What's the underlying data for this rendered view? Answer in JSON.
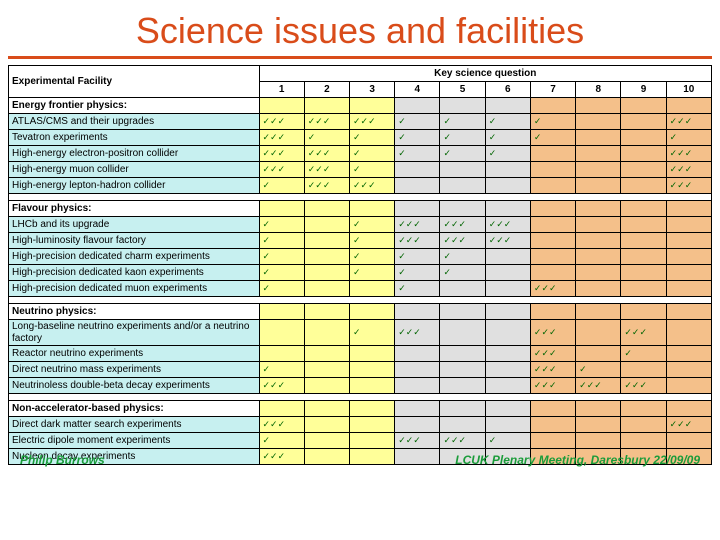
{
  "title": "Science issues and facilities",
  "colors": {
    "accent": "#d94c1a",
    "tick": "#006400",
    "cyan": "#c7f0f0",
    "yellow": "#ffff99",
    "grey": "#e0e0e0",
    "orange": "#f4c08a",
    "footer": "#1a9c3a"
  },
  "header": {
    "facility": "Experimental Facility",
    "key": "Key science question",
    "nums": [
      "1",
      "2",
      "3",
      "4",
      "5",
      "6",
      "7",
      "8",
      "9",
      "10"
    ]
  },
  "sections": [
    {
      "title": "Energy frontier physics:",
      "rows": [
        {
          "label": "ATLAS/CMS and their upgrades",
          "cells": [
            "✓✓✓",
            "✓✓✓",
            "✓✓✓",
            "✓",
            "✓",
            "✓",
            "✓",
            "",
            "",
            "✓✓✓"
          ]
        },
        {
          "label": "Tevatron experiments",
          "cells": [
            "✓✓✓",
            "✓",
            "✓",
            "✓",
            "✓",
            "✓",
            "✓",
            "",
            "",
            "✓"
          ]
        },
        {
          "label": "High-energy electron-positron collider",
          "cells": [
            "✓✓✓",
            "✓✓✓",
            "✓",
            "✓",
            "✓",
            "✓",
            "",
            "",
            "",
            "✓✓✓"
          ]
        },
        {
          "label": "High-energy muon collider",
          "cells": [
            "✓✓✓",
            "✓✓✓",
            "✓",
            "",
            "",
            "",
            "",
            "",
            "",
            "✓✓✓"
          ]
        },
        {
          "label": "High-energy lepton-hadron collider",
          "cells": [
            "✓",
            "✓✓✓",
            "✓✓✓",
            "",
            "",
            "",
            "",
            "",
            "",
            "✓✓✓"
          ]
        }
      ]
    },
    {
      "title": "Flavour physics:",
      "rows": [
        {
          "label": "LHCb and its upgrade",
          "cells": [
            "✓",
            "",
            "✓",
            "✓✓✓",
            "✓✓✓",
            "✓✓✓",
            "",
            "",
            "",
            ""
          ]
        },
        {
          "label": "High-luminosity flavour factory",
          "cells": [
            "✓",
            "",
            "✓",
            "✓✓✓",
            "✓✓✓",
            "✓✓✓",
            "",
            "",
            "",
            ""
          ]
        },
        {
          "label": "High-precision dedicated charm experiments",
          "cells": [
            "✓",
            "",
            "✓",
            "✓",
            "✓",
            "",
            "",
            "",
            "",
            ""
          ]
        },
        {
          "label": "High-precision dedicated kaon experiments",
          "cells": [
            "✓",
            "",
            "✓",
            "✓",
            "✓",
            "",
            "",
            "",
            "",
            ""
          ]
        },
        {
          "label": "High-precision dedicated muon experiments",
          "cells": [
            "✓",
            "",
            "",
            "✓",
            "",
            "",
            "✓✓✓",
            "",
            "",
            ""
          ]
        }
      ]
    },
    {
      "title": "Neutrino physics:",
      "rows": [
        {
          "label": "Long-baseline neutrino experiments and/or a neutrino factory",
          "cells": [
            "",
            "",
            "✓",
            "✓✓✓",
            "",
            "",
            "✓✓✓",
            "",
            "✓✓✓",
            ""
          ]
        },
        {
          "label": "Reactor neutrino experiments",
          "cells": [
            "",
            "",
            "",
            "",
            "",
            "",
            "✓✓✓",
            "",
            "✓",
            ""
          ]
        },
        {
          "label": "Direct neutrino mass experiments",
          "cells": [
            "✓",
            "",
            "",
            "",
            "",
            "",
            "✓✓✓",
            "✓",
            "",
            ""
          ]
        },
        {
          "label": "Neutrinoless double-beta decay experiments",
          "cells": [
            "✓✓✓",
            "",
            "",
            "",
            "",
            "",
            "✓✓✓",
            "✓✓✓",
            "✓✓✓",
            ""
          ]
        }
      ]
    },
    {
      "title": "Non-accelerator-based physics:",
      "rows": [
        {
          "label": "Direct dark matter search experiments",
          "cells": [
            "✓✓✓",
            "",
            "",
            "",
            "",
            "",
            "",
            "",
            "",
            "✓✓✓"
          ]
        },
        {
          "label": "Electric dipole moment experiments",
          "cells": [
            "✓",
            "",
            "",
            "✓✓✓",
            "✓✓✓",
            "✓",
            "",
            "",
            "",
            ""
          ]
        },
        {
          "label": "Nucleon decay experiments",
          "cells": [
            "✓✓✓",
            "",
            "",
            "",
            "",
            "",
            "",
            "",
            "",
            ""
          ]
        }
      ]
    }
  ],
  "footer": {
    "left": "Philip Burrows",
    "right": "LCUK Plenary Meeting, Daresbury 22/09/09"
  }
}
